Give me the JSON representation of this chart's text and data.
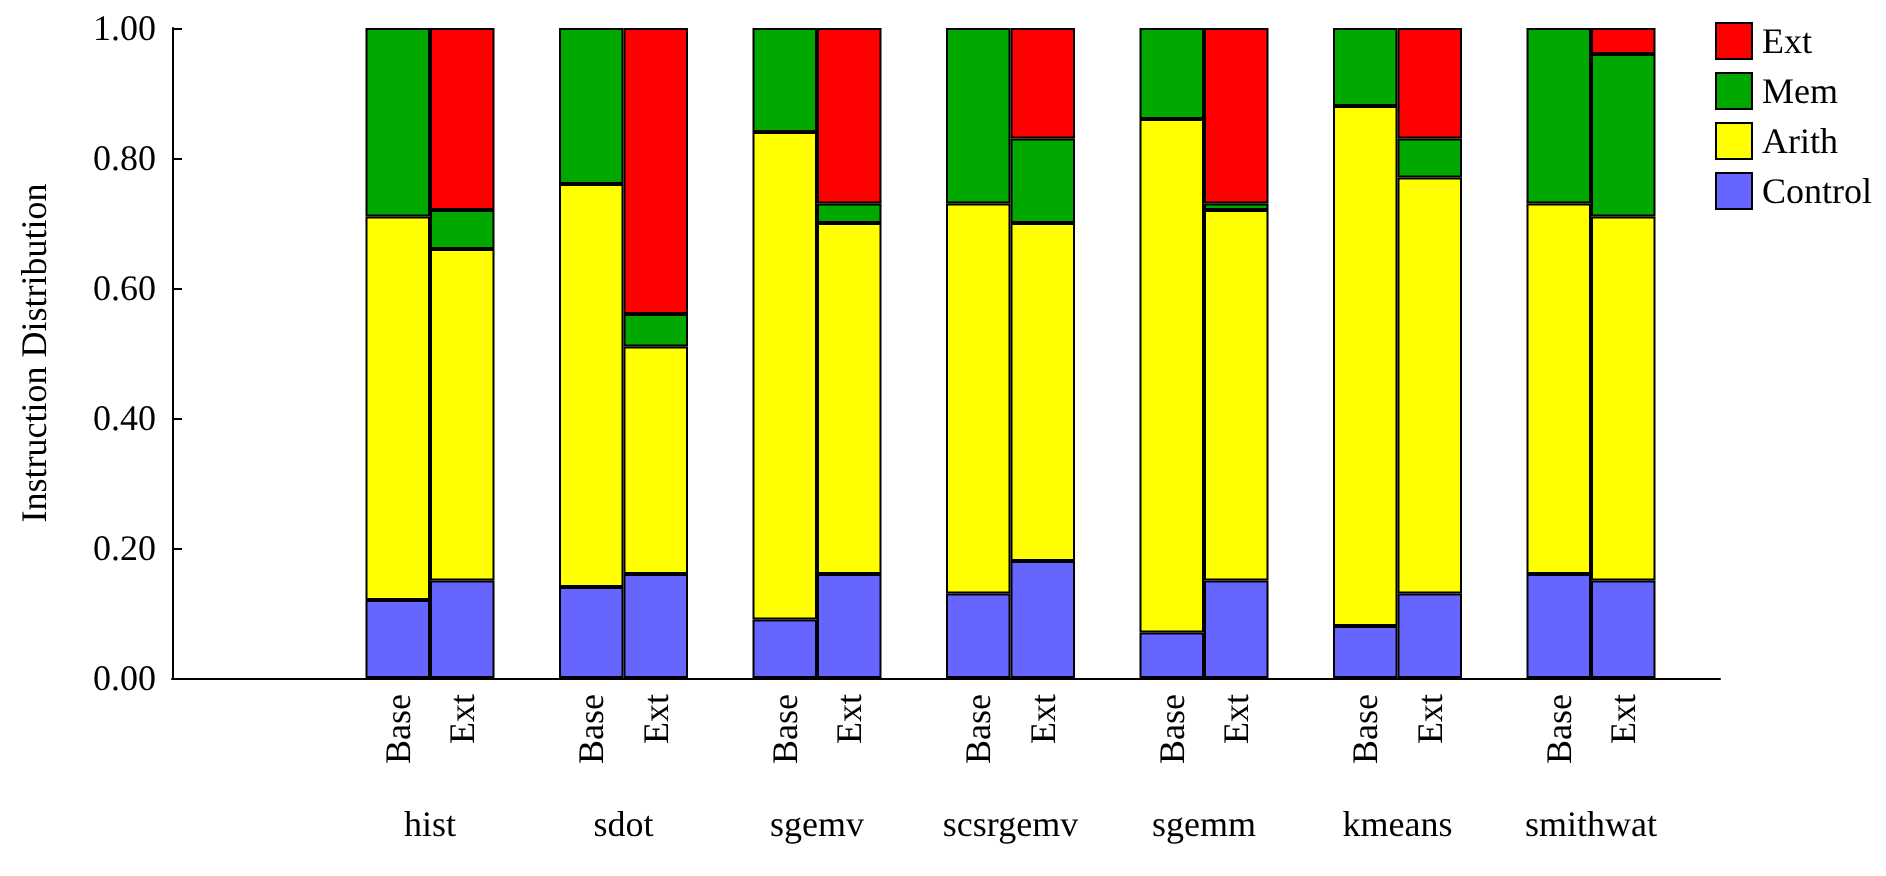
{
  "chart_data": {
    "type": "bar",
    "stacked": true,
    "ylabel": "Instruction Distribution",
    "categories": [
      null,
      null,
      null,
      "Base",
      "Ext",
      null,
      "Base",
      "Ext",
      null,
      "Base",
      "Ext",
      null,
      "Base",
      "Ext",
      null,
      "Base",
      "Ext",
      null,
      "Base",
      "Ext",
      null,
      "Base",
      "Ext",
      null
    ],
    "series": [
      {
        "name": "Control",
        "color": "#6666ff",
        "values": [
          null,
          null,
          null,
          0.12,
          0.15,
          null,
          0.14,
          0.16,
          null,
          0.09,
          0.16,
          null,
          0.13,
          0.18,
          null,
          0.07,
          0.15,
          null,
          0.08,
          0.13,
          null,
          0.16,
          0.15,
          null
        ]
      },
      {
        "name": "Arith",
        "color": "#ffff00",
        "values": [
          null,
          null,
          null,
          0.59,
          0.51,
          null,
          0.62,
          0.35,
          null,
          0.75,
          0.54,
          null,
          0.6,
          0.52,
          null,
          0.79,
          0.57,
          null,
          0.8,
          0.64,
          null,
          0.57,
          0.56,
          null
        ]
      },
      {
        "name": "Mem",
        "color": "#00a800",
        "values": [
          null,
          null,
          null,
          0.29,
          0.06,
          null,
          0.24,
          0.05,
          null,
          0.16,
          0.03,
          null,
          0.27,
          0.13,
          null,
          0.14,
          0.01,
          null,
          0.12,
          0.06,
          null,
          0.27,
          0.25,
          null
        ]
      },
      {
        "name": "Ext",
        "color": "#ff0000",
        "values": [
          null,
          null,
          null,
          null,
          0.28,
          null,
          null,
          0.44,
          null,
          null,
          0.27,
          null,
          null,
          0.17,
          null,
          null,
          0.27,
          null,
          null,
          0.17,
          null,
          null,
          0.04,
          null
        ]
      }
    ],
    "annotations": [
      "hist",
      "sdot",
      "sgemv",
      "scsrgemv",
      "sgemm",
      "kmeans",
      "smithwat"
    ],
    "ylim": [
      0,
      1
    ],
    "yticks": [
      {
        "value": 0,
        "label": "0.00"
      },
      {
        "value": 0.2,
        "label": "0.20"
      },
      {
        "value": 0.4,
        "label": "0.40"
      },
      {
        "value": 0.6,
        "label": "0.60"
      },
      {
        "value": 0.8,
        "label": "0.80"
      },
      {
        "value": 1,
        "label": "1.00"
      }
    ],
    "grid": false,
    "legend": "top right"
  }
}
